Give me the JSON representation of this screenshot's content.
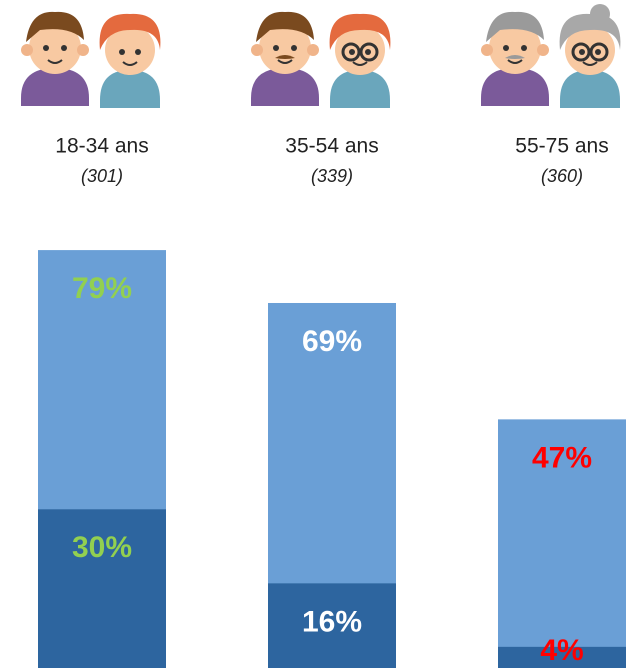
{
  "chart_data": {
    "type": "bar",
    "categories": [
      "18-34 ans",
      "35-54 ans",
      "55-75 ans"
    ],
    "subtitles": [
      "(301)",
      "(339)",
      "(360)"
    ],
    "series": [
      {
        "color": "#6a9fd6",
        "values": [
          79,
          69,
          47
        ],
        "value_labels": [
          "79%",
          "69%",
          "47%"
        ],
        "label_colors": [
          "#92d050",
          "#ffffff",
          "#ff0000"
        ]
      },
      {
        "color": "#2d659f",
        "values": [
          30,
          16,
          4
        ],
        "value_labels": [
          "30%",
          "16%",
          "4%"
        ],
        "label_colors": [
          "#92d050",
          "#ffffff",
          "#ff0000"
        ]
      }
    ]
  }
}
